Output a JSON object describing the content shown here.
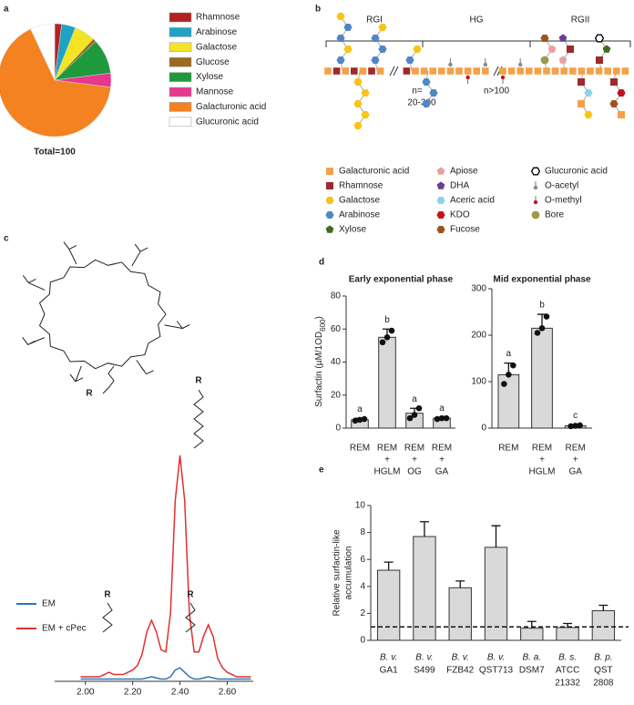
{
  "figure": {
    "panel_labels": [
      "a",
      "b",
      "c",
      "d",
      "e"
    ]
  },
  "chart_data": [
    {
      "type": "pie",
      "categories": [
        "Rhamnose",
        "Arabinose",
        "Galactose",
        "Glucose",
        "Xylose",
        "Mannose",
        "Galacturonic acid",
        "Glucuronic acid"
      ],
      "values": [
        2,
        4,
        6,
        1,
        10,
        4,
        66,
        7
      ],
      "colors": [
        "#b22222",
        "#1fa3c4",
        "#f2e523",
        "#9c6a1c",
        "#1e9a3c",
        "#e6388f",
        "#f58220",
        "#ffffff"
      ],
      "note": "Total=100"
    },
    {
      "type": "line",
      "x": [
        1.98,
        2.0,
        2.02,
        2.04,
        2.06,
        2.08,
        2.1,
        2.12,
        2.14,
        2.16,
        2.18,
        2.2,
        2.22,
        2.24,
        2.26,
        2.28,
        2.3,
        2.32,
        2.34,
        2.36,
        2.38,
        2.4,
        2.42,
        2.44,
        2.46,
        2.48,
        2.5,
        2.52,
        2.54,
        2.56,
        2.58,
        2.6,
        2.62,
        2.64,
        2.66,
        2.68,
        2.7
      ],
      "xlim": [
        1.87,
        2.71
      ],
      "xticks": [
        {
          "value": 2.0,
          "label": "2.00"
        },
        {
          "value": 2.2,
          "label": "2.20"
        },
        {
          "value": 2.4,
          "label": "2.40"
        },
        {
          "value": 2.6,
          "label": "2.60"
        }
      ],
      "series": [
        {
          "name": "EM",
          "color": "#2e75b6",
          "values": [
            1,
            1,
            1,
            1,
            1,
            1,
            1,
            1,
            1,
            1,
            1,
            1,
            1,
            1,
            1.5,
            2,
            1.5,
            1,
            1,
            2,
            5,
            6,
            4,
            2,
            1,
            1,
            1.5,
            2,
            1.5,
            1,
            1,
            1,
            1,
            1,
            1,
            1,
            1
          ]
        },
        {
          "name": "EM + cPec",
          "color": "#e03030",
          "values": [
            2,
            2,
            2,
            2,
            2,
            3,
            4,
            3,
            3,
            3,
            4,
            5,
            7,
            12,
            22,
            27,
            22,
            14,
            13,
            30,
            80,
            100,
            80,
            30,
            13,
            13,
            20,
            25,
            20,
            10,
            6,
            4,
            3,
            2,
            2,
            2,
            2
          ]
        }
      ]
    },
    {
      "type": "bar",
      "title": "Early exponential phase",
      "ylabel": {
        "text": "Surfactin (µM/1OD",
        "sub": "600",
        "end": ")"
      },
      "categories": [
        [
          "REM"
        ],
        [
          "REM",
          "+",
          "HGLM"
        ],
        [
          "REM",
          "+",
          "OG"
        ],
        [
          "REM",
          "+",
          "GA"
        ]
      ],
      "values": [
        5,
        55,
        9,
        6
      ],
      "errors": [
        1,
        5,
        3,
        0.5
      ],
      "points": [
        [
          4.5,
          5,
          5.5
        ],
        [
          52,
          55,
          59
        ],
        [
          6,
          8,
          12
        ],
        [
          5.5,
          6,
          6
        ]
      ],
      "letters": [
        "a",
        "b",
        "a",
        "a"
      ],
      "ylim": [
        0,
        80
      ],
      "yticks": [
        0,
        20,
        40,
        60,
        80
      ],
      "color": "#d9d9d9"
    },
    {
      "type": "bar",
      "title": "Mid exponential phase",
      "categories": [
        [
          "REM"
        ],
        [
          "REM",
          "+",
          "HGLM"
        ],
        [
          "REM",
          "+",
          "GA"
        ]
      ],
      "values": [
        115,
        215,
        5
      ],
      "errors": [
        25,
        30,
        2
      ],
      "points": [
        [
          95,
          115,
          135
        ],
        [
          205,
          215,
          240
        ],
        [
          4,
          5,
          6
        ]
      ],
      "letters": [
        "a",
        "b",
        "c"
      ],
      "ylim": [
        0,
        300
      ],
      "yticks": [
        0,
        100,
        200,
        300
      ],
      "color": "#d9d9d9"
    },
    {
      "type": "bar",
      "ylabel_lines": [
        "Relative surfactin-like",
        "accumulation"
      ],
      "categories": [
        [
          "B. v.",
          "GA1"
        ],
        [
          "B. v.",
          "S499"
        ],
        [
          "B. v.",
          "FZB42"
        ],
        [
          "B. v.",
          "QST713"
        ],
        [
          "B. a.",
          "DSM7"
        ],
        [
          "B. s.",
          "ATCC",
          "21332"
        ],
        [
          "B. p.",
          "QST",
          "2808"
        ]
      ],
      "values": [
        5.2,
        7.7,
        3.9,
        6.9,
        0.9,
        0.95,
        2.2
      ],
      "errors": [
        0.6,
        1.1,
        0.5,
        1.6,
        0.5,
        0.3,
        0.4
      ],
      "reference_line": 1,
      "ylim": [
        0,
        10
      ],
      "yticks": [
        0,
        2,
        4,
        6,
        8,
        10
      ],
      "color": "#d9d9d9"
    }
  ],
  "pectin_diagram": {
    "regions": [
      "RGI",
      "HG",
      "RGII"
    ],
    "repeats": [
      [
        "n=",
        "20-300"
      ],
      [
        "n>100"
      ]
    ],
    "legend": [
      {
        "name": "Galacturonic acid",
        "color": "#f4a14a",
        "shape": "square"
      },
      {
        "name": "Rhamnose",
        "color": "#9e2a2b",
        "shape": "square"
      },
      {
        "name": "Galactose",
        "color": "#f9c416",
        "shape": "hexagon"
      },
      {
        "name": "Arabinose",
        "color": "#4f86c6",
        "shape": "hexagon"
      },
      {
        "name": "Xylose",
        "color": "#3f6b22",
        "shape": "pentagon"
      },
      {
        "name": "Apiose",
        "color": "#e8a0a0",
        "shape": "pentagon"
      },
      {
        "name": "DHA",
        "color": "#6a3f8f",
        "shape": "pentagon"
      },
      {
        "name": "Aceric acid",
        "color": "#8fd3e8",
        "shape": "hexagon"
      },
      {
        "name": "KDO",
        "color": "#c0141c",
        "shape": "hexagon"
      },
      {
        "name": "Fucose",
        "color": "#a0521d",
        "shape": "hexagon"
      },
      {
        "name": "Glucuronic acid",
        "color": "#000000",
        "shape": "outline"
      },
      {
        "name": "O-acetyl",
        "color": "#888888",
        "shape": "pin"
      },
      {
        "name": "O-methyl",
        "color": "#c0141c",
        "shape": "pin"
      },
      {
        "name": "Bore",
        "color": "#9a9a4a",
        "shape": "circle"
      }
    ]
  },
  "structure": {
    "r_label": "R"
  }
}
